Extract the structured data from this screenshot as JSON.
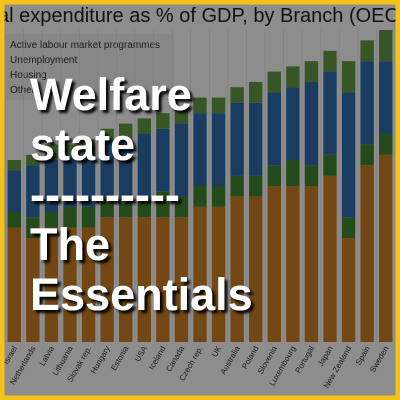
{
  "chart_data": {
    "type": "bar",
    "stacked": true,
    "title": "al expenditure as % of GDP, by Branch (OECD",
    "categories": [
      "Israel",
      "Netherlands",
      "Latvia",
      "Lithuania",
      "Slovak rep.",
      "Hungary",
      "Estonia",
      "USA",
      "Iceland",
      "Canada",
      "Czech rep.",
      "UK",
      "Australia",
      "Poland",
      "Slovenia",
      "Luxembourg",
      "Portugal",
      "Japan",
      "New Zealand",
      "Spain",
      "Sweden"
    ],
    "series": [
      {
        "name": "Other",
        "color": "#c47a22",
        "values": [
          11,
          10,
          11,
          11,
          11,
          12,
          12,
          12,
          12,
          12,
          13,
          13,
          14,
          14,
          15,
          15,
          15,
          16,
          10,
          17,
          18
        ]
      },
      {
        "name": "Housing",
        "color": "#3f7f2e",
        "values": [
          1.5,
          2,
          1.5,
          2,
          2,
          2,
          1.5,
          2,
          2.5,
          2,
          2,
          2,
          2,
          2,
          2,
          2.5,
          2,
          2,
          2,
          2,
          2
        ]
      },
      {
        "name": "Unemployment",
        "color": "#2e68a6",
        "values": [
          4,
          5,
          5,
          5,
          5,
          5.5,
          6,
          6,
          6,
          7,
          7,
          7,
          7,
          7,
          7,
          7,
          8,
          8,
          12,
          8,
          7
        ]
      },
      {
        "name": "Active labour market programmes",
        "color": "#5d9440",
        "values": [
          1,
          1,
          1.5,
          1,
          1.5,
          1,
          1.5,
          1.5,
          1.5,
          1.5,
          1.5,
          1.5,
          1.5,
          2,
          2,
          2,
          2,
          2,
          3,
          2,
          3
        ]
      }
    ],
    "ylim": [
      0,
      30
    ],
    "grid": true
  },
  "overlay": {
    "lines": [
      "Welfare",
      "state",
      "----------",
      "The",
      "Essentials"
    ]
  }
}
